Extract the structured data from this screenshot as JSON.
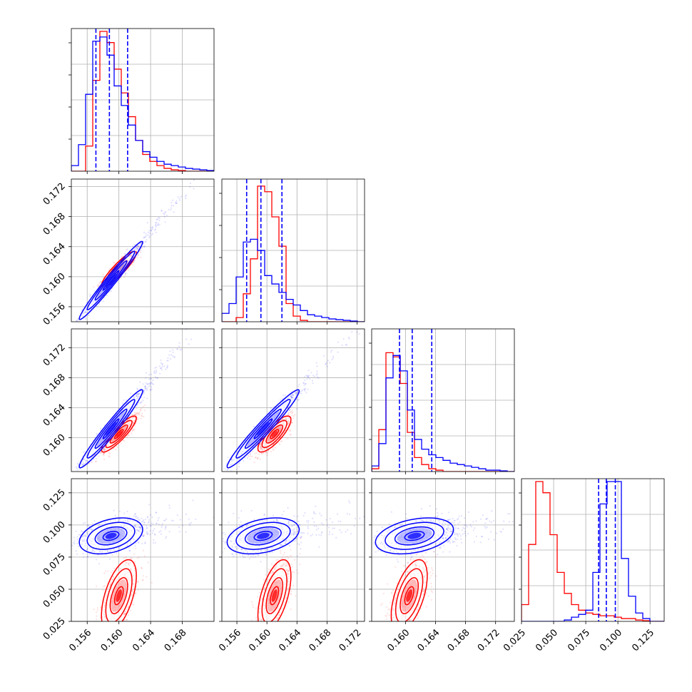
{
  "colors": {
    "series_a": "#0000ff",
    "series_b": "#ff0000",
    "grid": "#b0b0b0"
  },
  "chart_data": {
    "type": "corner",
    "grid": true,
    "n_params": 4,
    "series": [
      {
        "name": "",
        "color": "#0000ff"
      },
      {
        "name": "",
        "color": "#ff0000"
      }
    ],
    "params": [
      {
        "range": [
          0.154,
          0.172
        ],
        "ticks": [
          0.156,
          0.16,
          0.164,
          0.168
        ],
        "tick_labels": [
          "0.156",
          "0.160",
          "0.164",
          "0.168"
        ]
      },
      {
        "range": [
          0.154,
          0.173
        ],
        "ticks": [
          0.156,
          0.16,
          0.164,
          0.168,
          0.172
        ],
        "tick_labels": [
          "0.156",
          "0.160",
          "0.164",
          "0.168",
          "0.172"
        ]
      },
      {
        "range": [
          0.1555,
          0.1745
        ],
        "ticks": [
          0.16,
          0.164,
          0.168,
          0.172
        ],
        "tick_labels": [
          "0.160",
          "0.164",
          "0.168",
          "0.172"
        ]
      },
      {
        "range": [
          0.025,
          0.136
        ],
        "ticks": [
          0.025,
          0.05,
          0.075,
          0.1,
          0.125
        ],
        "tick_labels": [
          "0.025",
          "0.050",
          "0.075",
          "0.100",
          "0.125"
        ]
      }
    ],
    "quantiles_series_a": [
      [
        0.1571,
        0.1588,
        0.1611
      ],
      [
        0.1573,
        0.1592,
        0.162
      ],
      [
        0.1592,
        0.1609,
        0.1635
      ],
      [
        0.085,
        0.091,
        0.098
      ]
    ],
    "histograms": [
      {
        "bins": 20,
        "series_a": [
          0.04,
          0.19,
          0.55,
          0.93,
          0.96,
          0.83,
          0.61,
          0.47,
          0.33,
          0.22,
          0.14,
          0.1,
          0.07,
          0.05,
          0.04,
          0.03,
          0.02,
          0.015,
          0.01,
          0.005
        ],
        "series_b": [
          0.0,
          0.0,
          0.18,
          0.65,
          1.0,
          0.92,
          0.73,
          0.56,
          0.39,
          0.22,
          0.12,
          0.07,
          0.04,
          0.02,
          0.01,
          0.005,
          0.0,
          0.0,
          0.0,
          0.0
        ]
      },
      {
        "bins": 20,
        "series_a": [
          0.06,
          0.13,
          0.32,
          0.57,
          0.59,
          0.51,
          0.33,
          0.27,
          0.21,
          0.16,
          0.12,
          0.08,
          0.05,
          0.04,
          0.03,
          0.02,
          0.015,
          0.01,
          0.005,
          0.0
        ],
        "series_b": [
          0.0,
          0.0,
          0.03,
          0.2,
          0.45,
          0.97,
          0.93,
          0.75,
          0.54,
          0.13,
          0.04,
          0.01,
          0.0,
          0.0,
          0.0,
          0.0,
          0.0,
          0.0,
          0.0,
          0.0
        ]
      },
      {
        "bins": 20,
        "series_a": [
          0.04,
          0.2,
          0.67,
          0.83,
          0.72,
          0.44,
          0.23,
          0.16,
          0.12,
          0.1,
          0.08,
          0.06,
          0.05,
          0.04,
          0.03,
          0.02,
          0.01,
          0.01,
          0.005,
          0.0
        ],
        "series_b": [
          0.02,
          0.3,
          0.85,
          0.82,
          0.63,
          0.28,
          0.1,
          0.05,
          0.02,
          0.01,
          0.0,
          0.0,
          0.0,
          0.0,
          0.0,
          0.0,
          0.0,
          0.0,
          0.0,
          0.0
        ],
        "x_offset": 0.0
      },
      {
        "bins": 20,
        "series_a": [
          0.0,
          0.0,
          0.0,
          0.0,
          0.0,
          0.0,
          0.01,
          0.03,
          0.05,
          0.08,
          0.35,
          0.84,
          1.0,
          1.0,
          0.45,
          0.18,
          0.06,
          0.02,
          0.0,
          0.0
        ],
        "series_b": [
          0.12,
          0.55,
          1.0,
          0.92,
          0.62,
          0.35,
          0.2,
          0.12,
          0.08,
          0.06,
          0.05,
          0.04,
          0.04,
          0.03,
          0.02,
          0.02,
          0.01,
          0.005,
          0.0,
          0.0
        ]
      }
    ],
    "pairs": [
      {
        "row": 1,
        "col": 0,
        "a": {
          "cx": 0.159,
          "cy": 0.1595,
          "sx": 0.002,
          "sy": 0.0026,
          "rho": 0.98
        },
        "b": {
          "cx": 0.16,
          "cy": 0.161,
          "sx": 0.0011,
          "sy": 0.0012,
          "rho": 0.9
        }
      },
      {
        "row": 2,
        "col": 0,
        "a": {
          "cx": 0.159,
          "cy": 0.1612,
          "sx": 0.002,
          "sy": 0.0026,
          "rho": 0.97
        },
        "b": {
          "cx": 0.16,
          "cy": 0.1605,
          "sx": 0.0011,
          "sy": 0.0012,
          "rho": 0.88
        }
      },
      {
        "row": 2,
        "col": 1,
        "a": {
          "cx": 0.1595,
          "cy": 0.1612,
          "sx": 0.0024,
          "sy": 0.0026,
          "rho": 0.97
        },
        "b": {
          "cx": 0.161,
          "cy": 0.1605,
          "sx": 0.0011,
          "sy": 0.0012,
          "rho": 0.8
        }
      },
      {
        "row": 3,
        "col": 0,
        "a": {
          "cx": 0.159,
          "cy": 0.0915,
          "sx": 0.002,
          "sy": 0.007,
          "rho": 0.35
        },
        "b": {
          "cx": 0.16,
          "cy": 0.045,
          "sx": 0.0011,
          "sy": 0.014,
          "rho": 0.55
        }
      },
      {
        "row": 3,
        "col": 1,
        "a": {
          "cx": 0.1595,
          "cy": 0.0915,
          "sx": 0.0024,
          "sy": 0.007,
          "rho": 0.35
        },
        "b": {
          "cx": 0.161,
          "cy": 0.045,
          "sx": 0.0011,
          "sy": 0.014,
          "rho": 0.55
        }
      },
      {
        "row": 3,
        "col": 2,
        "a": {
          "cx": 0.1612,
          "cy": 0.0915,
          "sx": 0.0026,
          "sy": 0.007,
          "rho": 0.35
        },
        "b": {
          "cx": 0.1605,
          "cy": 0.045,
          "sx": 0.0012,
          "sy": 0.014,
          "rho": 0.55
        }
      }
    ]
  }
}
